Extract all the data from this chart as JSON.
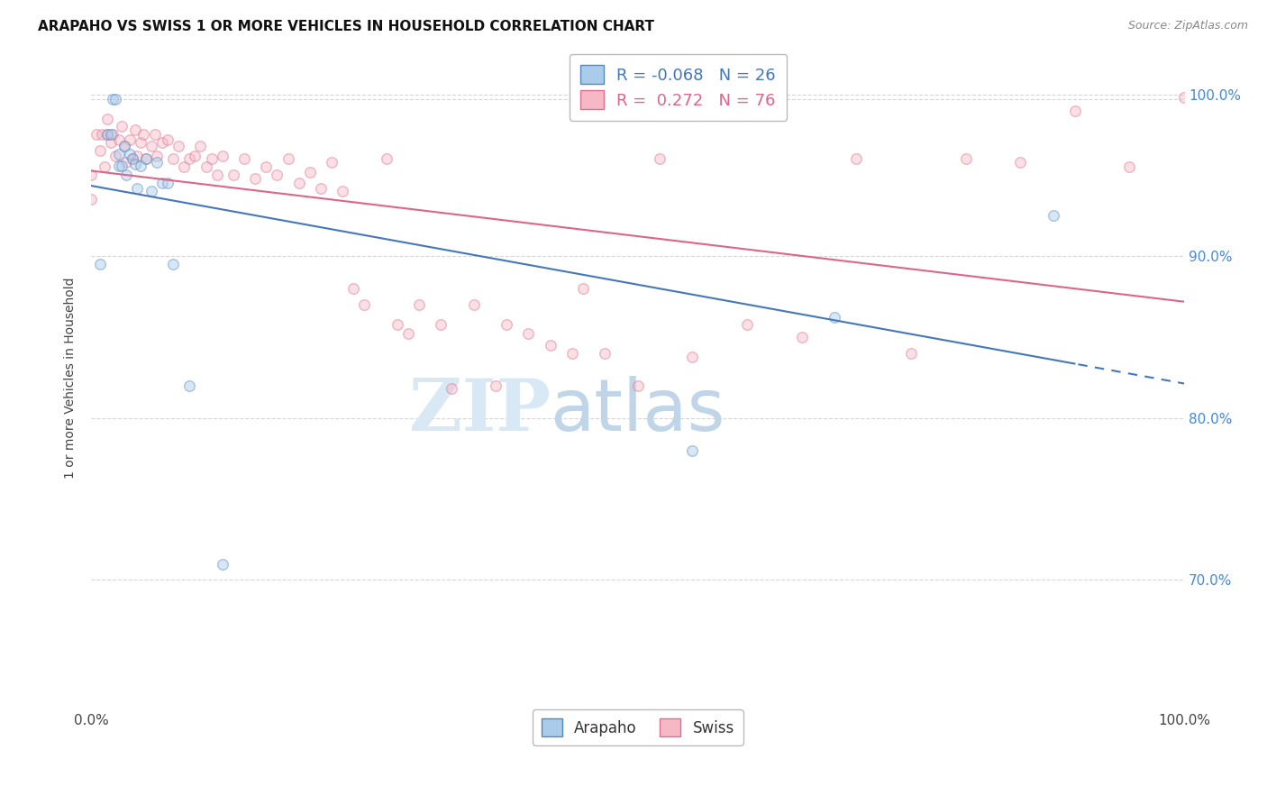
{
  "title": "ARAPAHO VS SWISS 1 OR MORE VEHICLES IN HOUSEHOLD CORRELATION CHART",
  "source": "Source: ZipAtlas.com",
  "ylabel": "1 or more Vehicles in Household",
  "background_color": "#ffffff",
  "arapaho_color": "#aacbea",
  "swiss_color": "#f5b8c4",
  "arapaho_edge_color": "#5588bb",
  "swiss_edge_color": "#dd7090",
  "arapaho_line_color": "#4477bb",
  "swiss_line_color": "#dd6688",
  "arapaho_R": -0.068,
  "arapaho_N": 26,
  "swiss_R": 0.272,
  "swiss_N": 76,
  "xlim": [
    0.0,
    1.0
  ],
  "ylim": [
    0.62,
    1.03
  ],
  "yticks": [
    0.7,
    0.8,
    0.9,
    1.0
  ],
  "ytick_labels_right": [
    "70.0%",
    "80.0%",
    "90.0%",
    "100.0%"
  ],
  "grid_color": "#cccccc",
  "grid_alpha": 0.8,
  "marker_size": 70,
  "marker_alpha": 0.45,
  "marker_linewidth": 1.0,
  "arapaho_x": [
    0.008,
    0.015,
    0.018,
    0.02,
    0.022,
    0.025,
    0.025,
    0.028,
    0.03,
    0.032,
    0.035,
    0.038,
    0.04,
    0.042,
    0.045,
    0.05,
    0.055,
    0.06,
    0.065,
    0.07,
    0.075,
    0.09,
    0.12,
    0.55,
    0.68,
    0.88
  ],
  "arapaho_y": [
    0.895,
    0.975,
    0.975,
    0.997,
    0.997,
    0.963,
    0.956,
    0.956,
    0.968,
    0.95,
    0.963,
    0.96,
    0.957,
    0.942,
    0.956,
    0.96,
    0.94,
    0.958,
    0.945,
    0.945,
    0.895,
    0.82,
    0.71,
    0.78,
    0.862,
    0.925
  ],
  "swiss_x": [
    0.0,
    0.0,
    0.005,
    0.008,
    0.01,
    0.012,
    0.015,
    0.015,
    0.018,
    0.02,
    0.022,
    0.025,
    0.028,
    0.03,
    0.032,
    0.035,
    0.038,
    0.04,
    0.042,
    0.045,
    0.048,
    0.05,
    0.055,
    0.058,
    0.06,
    0.065,
    0.07,
    0.075,
    0.08,
    0.085,
    0.09,
    0.095,
    0.1,
    0.105,
    0.11,
    0.115,
    0.12,
    0.13,
    0.14,
    0.15,
    0.16,
    0.17,
    0.18,
    0.19,
    0.2,
    0.21,
    0.22,
    0.23,
    0.24,
    0.25,
    0.27,
    0.28,
    0.29,
    0.3,
    0.32,
    0.33,
    0.35,
    0.37,
    0.38,
    0.4,
    0.42,
    0.44,
    0.45,
    0.47,
    0.5,
    0.52,
    0.55,
    0.6,
    0.65,
    0.7,
    0.75,
    0.8,
    0.85,
    0.9,
    0.95,
    1.0
  ],
  "swiss_y": [
    0.95,
    0.935,
    0.975,
    0.965,
    0.975,
    0.955,
    0.985,
    0.975,
    0.97,
    0.975,
    0.962,
    0.972,
    0.98,
    0.968,
    0.958,
    0.972,
    0.96,
    0.978,
    0.962,
    0.97,
    0.975,
    0.96,
    0.968,
    0.975,
    0.962,
    0.97,
    0.972,
    0.96,
    0.968,
    0.955,
    0.96,
    0.962,
    0.968,
    0.955,
    0.96,
    0.95,
    0.962,
    0.95,
    0.96,
    0.948,
    0.955,
    0.95,
    0.96,
    0.945,
    0.952,
    0.942,
    0.958,
    0.94,
    0.88,
    0.87,
    0.96,
    0.858,
    0.852,
    0.87,
    0.858,
    0.818,
    0.87,
    0.82,
    0.858,
    0.852,
    0.845,
    0.84,
    0.88,
    0.84,
    0.82,
    0.96,
    0.838,
    0.858,
    0.85,
    0.96,
    0.84,
    0.96,
    0.958,
    0.99,
    0.955,
    0.998
  ],
  "watermark_zip_color": "#d8e8f5",
  "watermark_atlas_color": "#c0d5e8",
  "title_fontsize": 11,
  "source_fontsize": 9,
  "tick_fontsize": 11,
  "ylabel_fontsize": 10
}
